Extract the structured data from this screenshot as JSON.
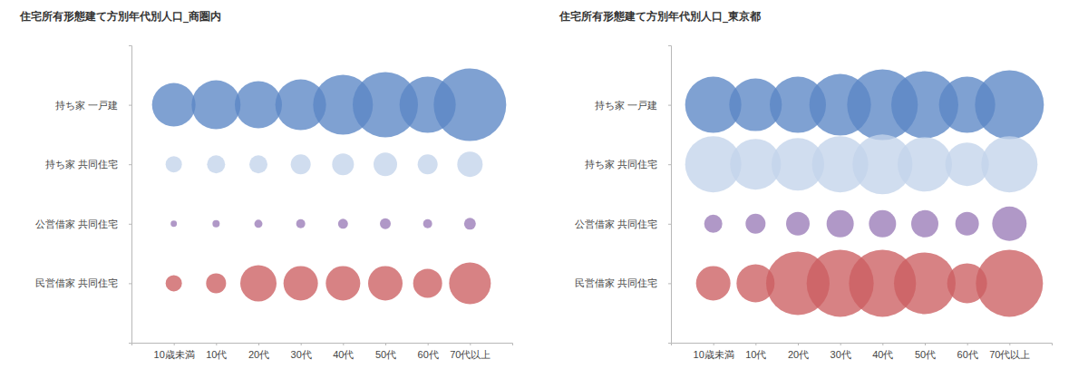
{
  "chart_data": [
    {
      "type": "bubble",
      "title": "住宅所有形態建て方別年代別人口_商圏内",
      "categories": [
        "10歳未満",
        "10代",
        "20代",
        "30代",
        "40代",
        "50代",
        "60代",
        "70代以上"
      ],
      "grid": false,
      "series": [
        {
          "name": "持ち家 一戸建",
          "color": "#5b87c5",
          "sizes": [
            576,
            729,
            676,
            784,
            1089,
            1296,
            961,
            1600
          ]
        },
        {
          "name": "持ち家 共同住宅",
          "color": "#c3d3ea",
          "sizes": [
            81,
            100,
            100,
            121,
            144,
            169,
            121,
            196
          ]
        },
        {
          "name": "公営借家 共同住宅",
          "color": "#9a7bb7",
          "sizes": [
            12,
            16,
            20,
            25,
            30,
            36,
            25,
            42
          ]
        },
        {
          "name": "民営借家 共同住宅",
          "color": "#cc5f61",
          "sizes": [
            81,
            121,
            400,
            361,
            361,
            361,
            256,
            529
          ]
        }
      ]
    },
    {
      "type": "bubble",
      "title": "住宅所有形態建て方別年代別人口_東京都",
      "categories": [
        "10歳未満",
        "10代",
        "20代",
        "30代",
        "40代",
        "50代",
        "60代",
        "70代以上"
      ],
      "grid": false,
      "series": [
        {
          "name": "持ち家 一戸建",
          "color": "#5b87c5",
          "sizes": [
            961,
            841,
            961,
            1156,
            1521,
            1369,
            961,
            1444
          ]
        },
        {
          "name": "持ち家 共同住宅",
          "color": "#c3d3ea",
          "sizes": [
            961,
            784,
            841,
            961,
            1089,
            900,
            576,
            961
          ]
        },
        {
          "name": "公営借家 共同住宅",
          "color": "#9a7bb7",
          "sizes": [
            100,
            121,
            169,
            225,
            225,
            225,
            169,
            361
          ]
        },
        {
          "name": "民営借家 共同住宅",
          "color": "#cc5f61",
          "sizes": [
            361,
            441,
            1225,
            1369,
            1369,
            1156,
            484,
            1369
          ]
        }
      ]
    }
  ]
}
